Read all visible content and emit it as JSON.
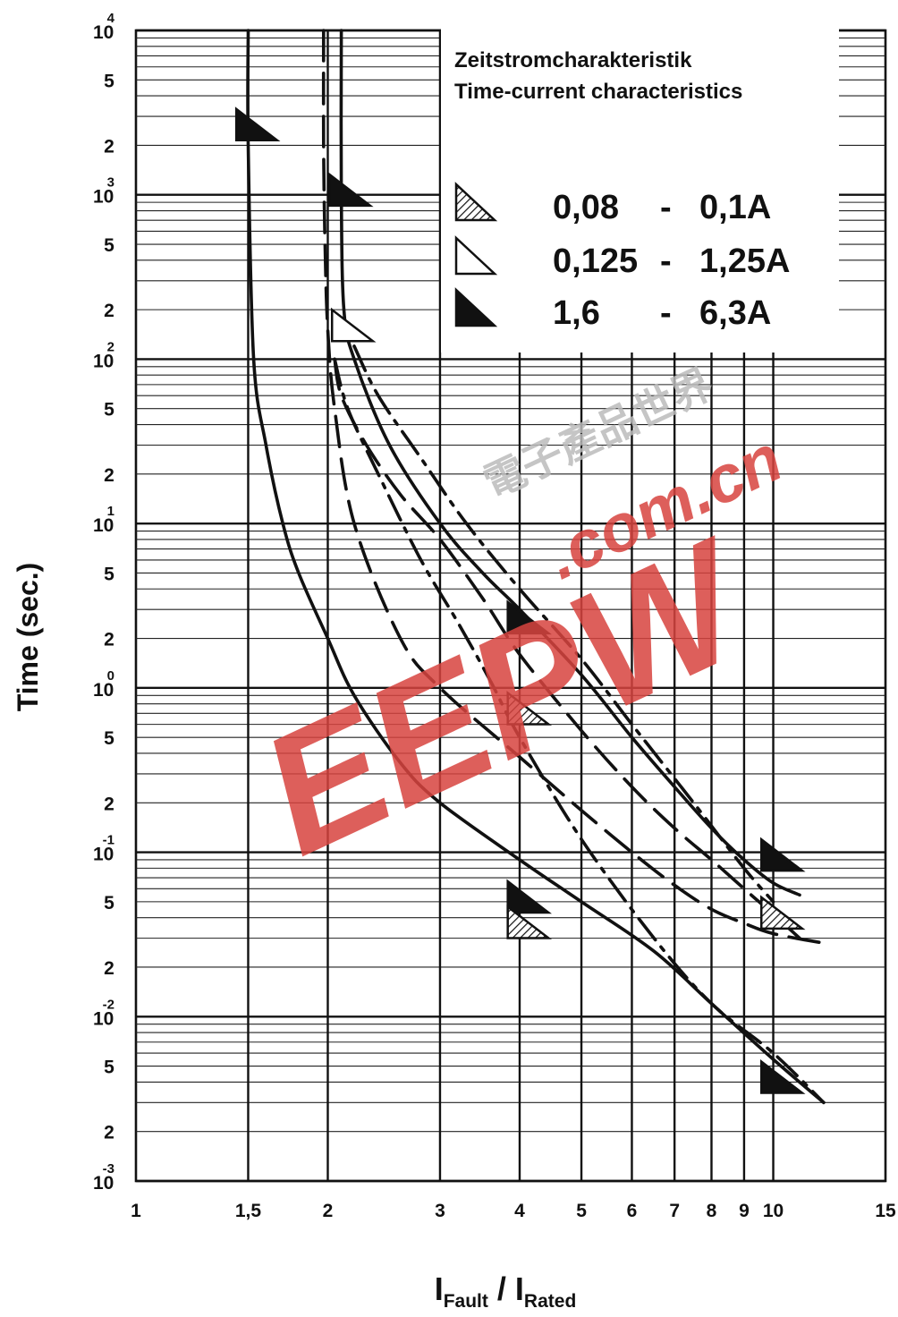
{
  "chart_data": {
    "type": "line",
    "title": "Zeitstromcharakteristik",
    "subtitle": "Time-current characteristics",
    "ylabel": "Time (sec.)",
    "xlabel": {
      "main": "I",
      "sub1": "Fault",
      "sep": " / ",
      "main2": "I",
      "sub2": "Rated"
    },
    "x_scale": "log",
    "y_scale": "log",
    "xlim": [
      1,
      15
    ],
    "ylim": [
      0.001,
      10000
    ],
    "x_ticks": [
      {
        "v": 1,
        "label": "1"
      },
      {
        "v": 1.5,
        "label": "1,5"
      },
      {
        "v": 2,
        "label": "2"
      },
      {
        "v": 3,
        "label": "3"
      },
      {
        "v": 4,
        "label": "4"
      },
      {
        "v": 5,
        "label": "5"
      },
      {
        "v": 6,
        "label": "6"
      },
      {
        "v": 7,
        "label": "7"
      },
      {
        "v": 8,
        "label": "8"
      },
      {
        "v": 9,
        "label": "9"
      },
      {
        "v": 10,
        "label": "10"
      },
      {
        "v": 15,
        "label": "15"
      }
    ],
    "y_decades": [
      {
        "exp": 4,
        "label": "10",
        "sup": "4"
      },
      {
        "exp": 3,
        "label": "10",
        "sup": "3"
      },
      {
        "exp": 2,
        "label": "10",
        "sup": "2"
      },
      {
        "exp": 1,
        "label": "10",
        "sup": "1"
      },
      {
        "exp": 0,
        "label": "10",
        "sup": "0"
      },
      {
        "exp": -1,
        "label": "10",
        "sup": "-1"
      },
      {
        "exp": -2,
        "label": "10",
        "sup": "-2"
      },
      {
        "exp": -3,
        "label": "10",
        "sup": "-3"
      }
    ],
    "y_minor_labels": [
      "5",
      "2"
    ],
    "legend": {
      "placement": "top-right",
      "entries": [
        {
          "marker": "hatched",
          "from": "0,08",
          "dash": "-",
          "to": "0,1A"
        },
        {
          "marker": "open",
          "from": "0,125",
          "dash": "-",
          "to": "1,25A"
        },
        {
          "marker": "filled",
          "from": "1,6",
          "dash": "-",
          "to": "6,3A"
        }
      ]
    },
    "series": [
      {
        "marker": "filled",
        "bound": "lower",
        "style": "solid",
        "x": [
          1.5,
          1.5,
          1.53,
          1.6,
          1.7,
          1.8,
          2.0,
          2.2,
          2.6,
          3.0,
          4.0,
          5.0,
          6.5,
          8.0,
          10.0,
          12.0
        ],
        "y": [
          10000,
          2000,
          100,
          30,
          10,
          5,
          2,
          0.9,
          0.35,
          0.2,
          0.09,
          0.05,
          0.025,
          0.012,
          0.0055,
          0.003
        ]
      },
      {
        "marker": "filled",
        "bound": "upper",
        "style": "solid",
        "x": [
          2.1,
          2.1,
          2.12,
          2.2,
          2.5,
          3.0,
          3.5,
          4.0,
          5.0,
          6.0,
          7.0,
          8.0,
          9.0,
          10.0,
          11.0
        ],
        "y": [
          10000,
          1000,
          200,
          100,
          30,
          10,
          5,
          3,
          1.2,
          0.5,
          0.25,
          0.14,
          0.09,
          0.065,
          0.055
        ]
      },
      {
        "marker": "hatched",
        "bound": "lower",
        "style": "dashed",
        "x": [
          1.97,
          1.97,
          1.98,
          2.0,
          2.05,
          2.2,
          2.6,
          3.0,
          4.0,
          5.0,
          6.0,
          7.0,
          8.0,
          9.0,
          10.0,
          12.0
        ],
        "y": [
          10000,
          2000,
          500,
          150,
          50,
          10,
          2,
          1,
          0.38,
          0.18,
          0.1,
          0.063,
          0.045,
          0.037,
          0.032,
          0.028
        ]
      },
      {
        "marker": "hatched",
        "bound": "upper",
        "style": "dashed",
        "x": [
          2.05,
          2.1,
          2.3,
          2.6,
          3.0,
          3.5,
          4.0,
          5.0,
          6.0,
          7.0,
          8.0,
          9.0,
          10.0,
          11.0
        ],
        "y": [
          100,
          60,
          30,
          15,
          8,
          3.5,
          1.6,
          0.55,
          0.25,
          0.14,
          0.09,
          0.06,
          0.042,
          0.03
        ]
      },
      {
        "marker": "open",
        "bound": "lower",
        "style": "dash-dot",
        "x": [
          2.05,
          2.15,
          2.4,
          2.8,
          3.2,
          3.6,
          4.0,
          5.0,
          6.5,
          8.0,
          10.0,
          12.0
        ],
        "y": [
          100,
          50,
          20,
          6,
          2.5,
          1.1,
          0.5,
          0.12,
          0.03,
          0.012,
          0.006,
          0.003
        ]
      },
      {
        "marker": "open",
        "bound": "upper",
        "style": "dash-dot",
        "x": [
          2.2,
          2.4,
          2.8,
          3.3,
          4.0,
          5.0,
          6.0,
          7.5,
          9.0,
          10.0
        ],
        "y": [
          120,
          60,
          25,
          10,
          4,
          1.5,
          0.6,
          0.2,
          0.08,
          0.05
        ]
      }
    ],
    "markers": [
      {
        "type": "filled",
        "x": 1.5,
        "y": 2500
      },
      {
        "type": "filled",
        "x": 2.1,
        "y": 1000
      },
      {
        "type": "open",
        "x": 2.12,
        "y": 150
      },
      {
        "type": "filled",
        "x": 4.0,
        "y": 2.5
      },
      {
        "type": "hatched",
        "x": 4.0,
        "y": 0.7
      },
      {
        "type": "filled",
        "x": 10.0,
        "y": 0.09
      },
      {
        "type": "hatched",
        "x": 10.0,
        "y": 0.04
      },
      {
        "type": "filled",
        "x": 4.0,
        "y": 0.05
      },
      {
        "type": "hatched",
        "x": 4.0,
        "y": 0.035
      },
      {
        "type": "filled",
        "x": 10.0,
        "y": 0.004
      }
    ],
    "grid": true
  },
  "watermark": {
    "main": "EEPW",
    "sub": ".com.cn",
    "cn": "電子產品世界",
    "color": "#d8443f"
  }
}
